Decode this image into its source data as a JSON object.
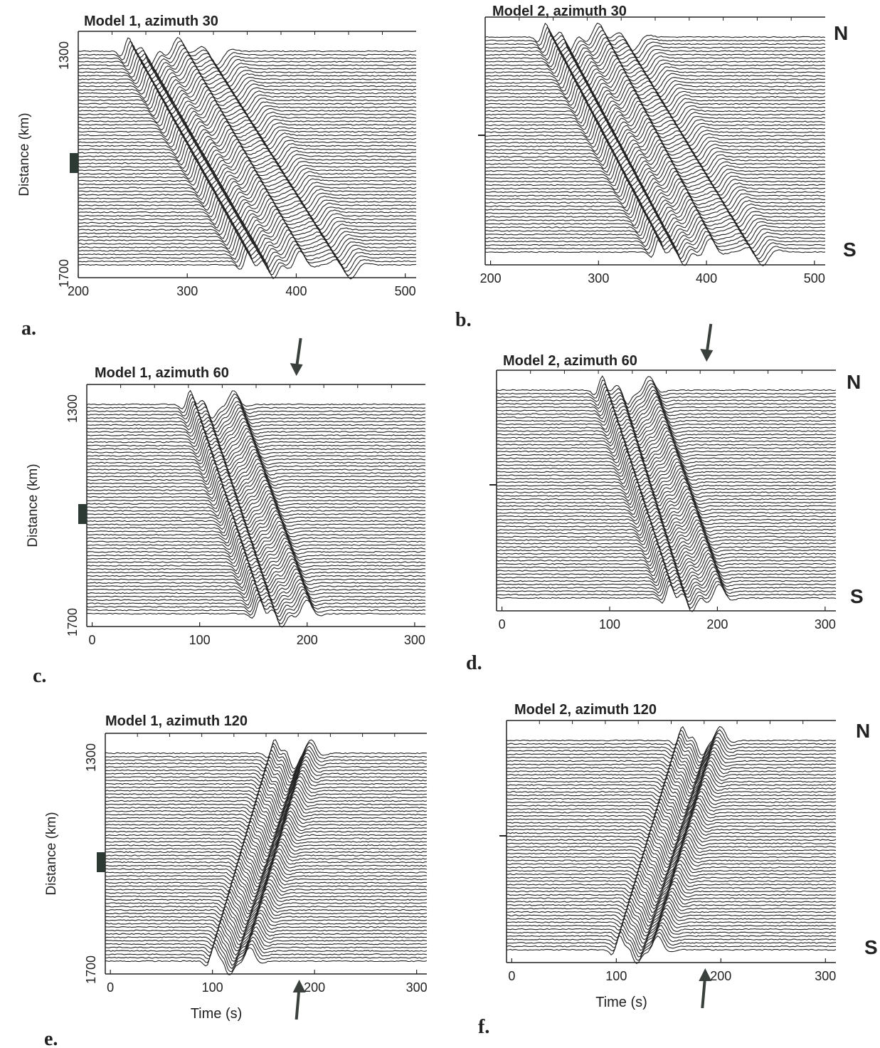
{
  "chart_data": [
    {
      "id": "a",
      "type": "line",
      "panel_label": "a.",
      "title": "Model 1, azimuth 30",
      "xlabel": "",
      "ylabel": "Distance (km)",
      "xlim": [
        200,
        510
      ],
      "ylim": [
        1700,
        1300
      ],
      "x_ticks": [
        200,
        300,
        400,
        500
      ],
      "y_ticks": [
        1300,
        1700
      ],
      "station_marker": "box",
      "wave_arrivals_s": [
        {
          "t_north": 245,
          "t_south": 355
        },
        {
          "t_north": 265,
          "t_south": 378
        },
        {
          "t_north": 290,
          "t_south": 402
        },
        {
          "t_north": 325,
          "t_south": 448
        }
      ],
      "arrow": null,
      "compass": {
        "north": "",
        "south": ""
      }
    },
    {
      "id": "b",
      "type": "line",
      "panel_label": "b.",
      "title": "Model 2, azimuth 30",
      "xlabel": "",
      "ylabel": "",
      "xlim": [
        195,
        510
      ],
      "ylim": [
        1700,
        1300
      ],
      "x_ticks": [
        200,
        300,
        400,
        500
      ],
      "y_ticks": [],
      "station_marker": "dash",
      "wave_arrivals_s": [
        {
          "t_north": 250,
          "t_south": 355
        },
        {
          "t_north": 272,
          "t_south": 378
        },
        {
          "t_north": 298,
          "t_south": 402
        },
        {
          "t_north": 330,
          "t_south": 450
        }
      ],
      "arrow": null,
      "compass": {
        "north": "N",
        "south": "S"
      }
    },
    {
      "id": "c",
      "type": "line",
      "panel_label": "c.",
      "title": "Model 1, azimuth 60",
      "xlabel": "",
      "ylabel": "Distance (km)",
      "xlim": [
        -5,
        310
      ],
      "ylim": [
        1700,
        1300
      ],
      "x_ticks": [
        0,
        100,
        200,
        300
      ],
      "y_ticks": [
        1300,
        1700
      ],
      "station_marker": "box",
      "wave_arrivals_s": [
        {
          "t_north": 90,
          "t_south": 155
        },
        {
          "t_north": 110,
          "t_south": 175
        },
        {
          "t_north": 130,
          "t_south": 198
        }
      ],
      "arrow": {
        "direction": "down",
        "position": "top",
        "t": 190
      },
      "compass": {
        "north": "",
        "south": ""
      }
    },
    {
      "id": "d",
      "type": "line",
      "panel_label": "d.",
      "title": "Model 2, azimuth 60",
      "xlabel": "",
      "ylabel": "",
      "xlim": [
        -5,
        310
      ],
      "ylim": [
        1700,
        1300
      ],
      "x_ticks": [
        0,
        100,
        200,
        300
      ],
      "y_ticks": [],
      "station_marker": "dash",
      "wave_arrivals_s": [
        {
          "t_north": 92,
          "t_south": 155
        },
        {
          "t_north": 115,
          "t_south": 175
        },
        {
          "t_north": 135,
          "t_south": 200
        }
      ],
      "arrow": {
        "direction": "down",
        "position": "top",
        "t": 190
      },
      "compass": {
        "north": "N",
        "south": "S"
      }
    },
    {
      "id": "e",
      "type": "line",
      "panel_label": "e.",
      "title": "Model 1, azimuth 120",
      "xlabel": "Time (s)",
      "ylabel": "Distance (km)",
      "xlim": [
        -5,
        310
      ],
      "ylim": [
        1700,
        1300
      ],
      "x_ticks": [
        0,
        100,
        200,
        300
      ],
      "y_ticks": [
        1300,
        1700
      ],
      "station_marker": "box",
      "wave_arrivals_s": [
        {
          "t_north": 160,
          "t_south": 100
        },
        {
          "t_north": 178,
          "t_south": 115
        },
        {
          "t_north": 195,
          "t_south": 135
        }
      ],
      "arrow": {
        "direction": "up",
        "position": "bottom",
        "t": 185
      },
      "compass": {
        "north": "",
        "south": ""
      }
    },
    {
      "id": "f",
      "type": "line",
      "panel_label": "f.",
      "title": "Model 2, azimuth 120",
      "xlabel": "Time (s)",
      "ylabel": "",
      "xlim": [
        -5,
        310
      ],
      "ylim": [
        1700,
        1300
      ],
      "x_ticks": [
        0,
        100,
        200,
        300
      ],
      "y_ticks": [],
      "station_marker": "dash",
      "wave_arrivals_s": [
        {
          "t_north": 162,
          "t_south": 102
        },
        {
          "t_north": 180,
          "t_south": 118
        },
        {
          "t_north": 198,
          "t_south": 138
        }
      ],
      "arrow": {
        "direction": "up",
        "position": "bottom",
        "t": 185
      },
      "compass": {
        "north": "N",
        "south": "S"
      }
    }
  ]
}
